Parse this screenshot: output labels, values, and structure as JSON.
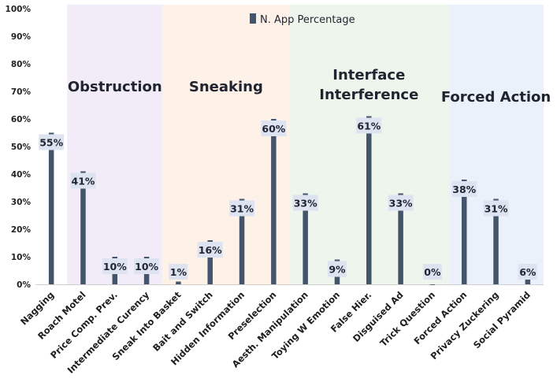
{
  "chart_data": {
    "type": "bar",
    "legend": "N. App Percentage",
    "categories": [
      "Nagging",
      "Roach Motel",
      "Price Comp. Prev.",
      "Intermediate Curency",
      "Sneak Into Basket",
      "Bait and Switch",
      "Hidden Information",
      "Preselection",
      "Aesth. Manipulation",
      "Toying W Emotion",
      "False Hier.",
      "Disguised Ad",
      "Trick Question",
      "Forced Action",
      "Privacy Zuckering",
      "Social Pyramid"
    ],
    "series": [
      {
        "name": "N. App Percentage",
        "values": [
          55,
          41,
          10,
          10,
          1,
          16,
          31,
          60,
          33,
          9,
          61,
          33,
          0,
          38,
          31,
          6
        ],
        "labels": [
          "55%",
          "41%",
          "10%",
          "10%",
          "1%",
          "16%",
          "31%",
          "60%",
          "33%",
          "9%",
          "61%",
          "33%",
          "0%",
          "38%",
          "31%",
          "6%"
        ]
      }
    ],
    "yticks": [
      "0%",
      "10%",
      "20%",
      "30%",
      "40%",
      "50%",
      "60%",
      "70%",
      "80%",
      "90%",
      "100%"
    ],
    "ylim": [
      0,
      100
    ],
    "legend_position": "top-center",
    "groups": [
      {
        "label": "Obstruction",
        "start": 1,
        "end": 3,
        "color": "#f1ecf7"
      },
      {
        "label": "Sneaking",
        "start": 4,
        "end": 7,
        "color": "#fdf1e8"
      },
      {
        "label": "Interface Interference",
        "start": 8,
        "end": 12,
        "color": "#eef5ec"
      },
      {
        "label": "Forced Action",
        "start": 13,
        "end": 15,
        "color": "#ebf1fb"
      }
    ],
    "bar_color": "#44546a",
    "label_bg": "#dde3f0"
  }
}
